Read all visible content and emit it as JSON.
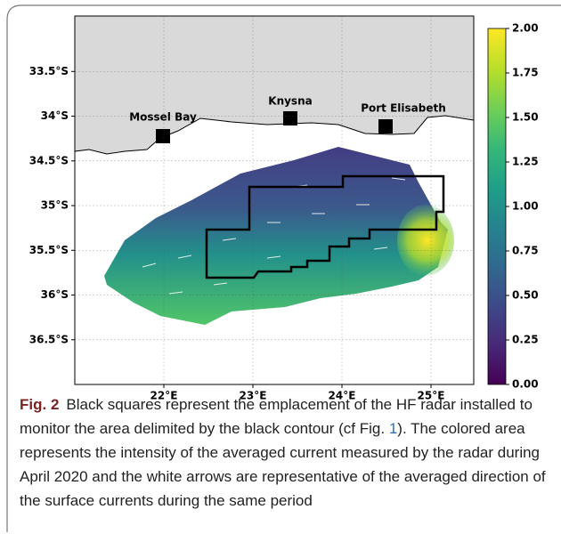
{
  "figure": {
    "map": {
      "lat_range": [
        32.88,
        37.0
      ],
      "lon_range": [
        21.0,
        25.48
      ],
      "lat_ticks": [
        {
          "value": 33.5,
          "label": "33.5°S"
        },
        {
          "value": 34,
          "label": "34°S"
        },
        {
          "value": 34.5,
          "label": "34.5°S"
        },
        {
          "value": 35,
          "label": "35°S"
        },
        {
          "value": 35.5,
          "label": "35.5°S"
        },
        {
          "value": 36,
          "label": "36°S"
        },
        {
          "value": 36.5,
          "label": "36.5°S"
        }
      ],
      "lon_ticks": [
        {
          "value": 22,
          "label": "22°E"
        },
        {
          "value": 23,
          "label": "23°E"
        },
        {
          "value": 24,
          "label": "24°E"
        },
        {
          "value": 25,
          "label": "25°E"
        }
      ],
      "places": [
        "Mossel Bay",
        "Knysna",
        "Port Elisabeth"
      ]
    },
    "colorbar": {
      "range": [
        0,
        2
      ],
      "ticks": [
        {
          "value": 0,
          "label": "0.00"
        },
        {
          "value": 0.25,
          "label": "0.25"
        },
        {
          "value": 0.5,
          "label": "0.50"
        },
        {
          "value": 0.75,
          "label": "0.75"
        },
        {
          "value": 1,
          "label": "1.00"
        },
        {
          "value": 1.25,
          "label": "1.25"
        },
        {
          "value": 1.5,
          "label": "1.50"
        },
        {
          "value": 1.75,
          "label": "1.75"
        },
        {
          "value": 2,
          "label": "2.00"
        }
      ]
    }
  },
  "caption": {
    "label": "Fig. 2",
    "text_before": "Black squares represent the emplacement of the HF radar installed to monitor the area delimited by the black contour (cf Fig. ",
    "link": "1",
    "text_after": "). The colored area represents the intensity of the averaged current measured by the radar during April 2020 and the white arrows are representative of the averaged direction of the surface currents during the same period"
  }
}
